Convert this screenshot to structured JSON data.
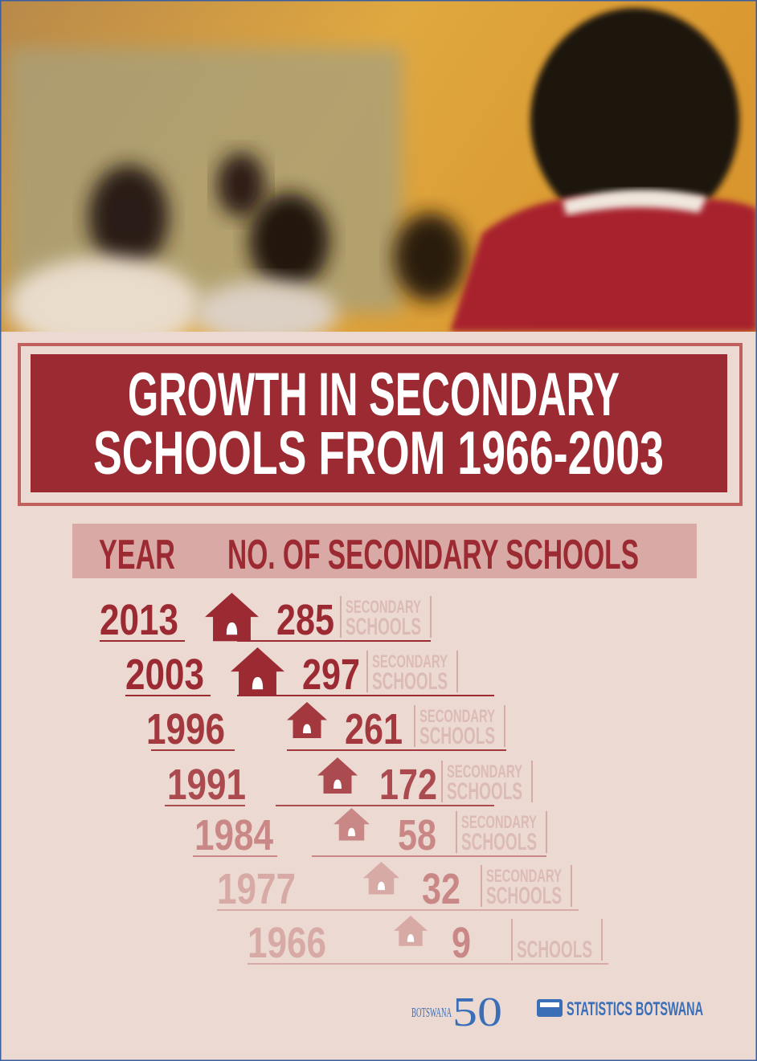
{
  "title_lines": [
    "GROWTH IN SECONDARY",
    "SCHOOLS FROM 1966-2003"
  ],
  "table": {
    "header": [
      "YEAR",
      "NO. OF SECONDARY SCHOOLS"
    ],
    "rows": [
      {
        "year": 2013,
        "count": 285,
        "unit": [
          "SECONDARY",
          "SCHOOLS"
        ]
      },
      {
        "year": 2003,
        "count": 297,
        "unit": [
          "SECONDARY",
          "SCHOOLS"
        ]
      },
      {
        "year": 1996,
        "count": 261,
        "unit": [
          "SECONDARY",
          "SCHOOLS"
        ]
      },
      {
        "year": 1991,
        "count": 172,
        "unit": [
          "SECONDARY",
          "SCHOOLS"
        ]
      },
      {
        "year": 1984,
        "count": 58,
        "unit": [
          "SECONDARY",
          "SCHOOLS"
        ]
      },
      {
        "year": 1977,
        "count": 32,
        "unit": [
          "SECONDARY",
          "SCHOOLS"
        ]
      },
      {
        "year": 1966,
        "count": 9,
        "unit": [
          "SCHOOLS"
        ]
      }
    ]
  },
  "logos": {
    "botswana": "BOTSWANA",
    "fifty": "50",
    "stats": "STATISTICS BOTSWANA"
  }
}
